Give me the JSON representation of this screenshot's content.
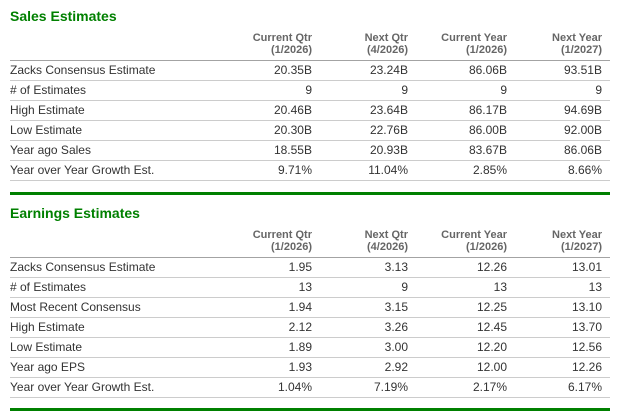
{
  "accent_color": "#008000",
  "sections": [
    {
      "title": "Sales Estimates",
      "columns": [
        {
          "label": "Current Qtr",
          "period": "(1/2026)"
        },
        {
          "label": "Next Qtr",
          "period": "(4/2026)"
        },
        {
          "label": "Current Year",
          "period": "(1/2026)"
        },
        {
          "label": "Next Year",
          "period": "(1/2027)"
        }
      ],
      "rows": [
        {
          "label": "Zacks Consensus Estimate",
          "values": [
            "20.35B",
            "23.24B",
            "86.06B",
            "93.51B"
          ]
        },
        {
          "label": "# of Estimates",
          "values": [
            "9",
            "9",
            "9",
            "9"
          ]
        },
        {
          "label": "High Estimate",
          "values": [
            "20.46B",
            "23.64B",
            "86.17B",
            "94.69B"
          ]
        },
        {
          "label": "Low Estimate",
          "values": [
            "20.30B",
            "22.76B",
            "86.00B",
            "92.00B"
          ]
        },
        {
          "label": "Year ago Sales",
          "values": [
            "18.55B",
            "20.93B",
            "83.67B",
            "86.06B"
          ]
        },
        {
          "label": "Year over Year Growth Est.",
          "values": [
            "9.71%",
            "11.04%",
            "2.85%",
            "8.66%"
          ]
        }
      ]
    },
    {
      "title": "Earnings Estimates",
      "columns": [
        {
          "label": "Current Qtr",
          "period": "(1/2026)"
        },
        {
          "label": "Next Qtr",
          "period": "(4/2026)"
        },
        {
          "label": "Current Year",
          "period": "(1/2026)"
        },
        {
          "label": "Next Year",
          "period": "(1/2027)"
        }
      ],
      "rows": [
        {
          "label": "Zacks Consensus Estimate",
          "values": [
            "1.95",
            "3.13",
            "12.26",
            "13.01"
          ]
        },
        {
          "label": "# of Estimates",
          "values": [
            "13",
            "9",
            "13",
            "13"
          ]
        },
        {
          "label": "Most Recent Consensus",
          "values": [
            "1.94",
            "3.15",
            "12.25",
            "13.10"
          ]
        },
        {
          "label": "High Estimate",
          "values": [
            "2.12",
            "3.26",
            "12.45",
            "13.70"
          ]
        },
        {
          "label": "Low Estimate",
          "values": [
            "1.89",
            "3.00",
            "12.20",
            "12.56"
          ]
        },
        {
          "label": "Year ago EPS",
          "values": [
            "1.93",
            "2.92",
            "12.00",
            "12.26"
          ]
        },
        {
          "label": "Year over Year Growth Est.",
          "values": [
            "1.04%",
            "7.19%",
            "2.17%",
            "6.17%"
          ]
        }
      ]
    }
  ]
}
